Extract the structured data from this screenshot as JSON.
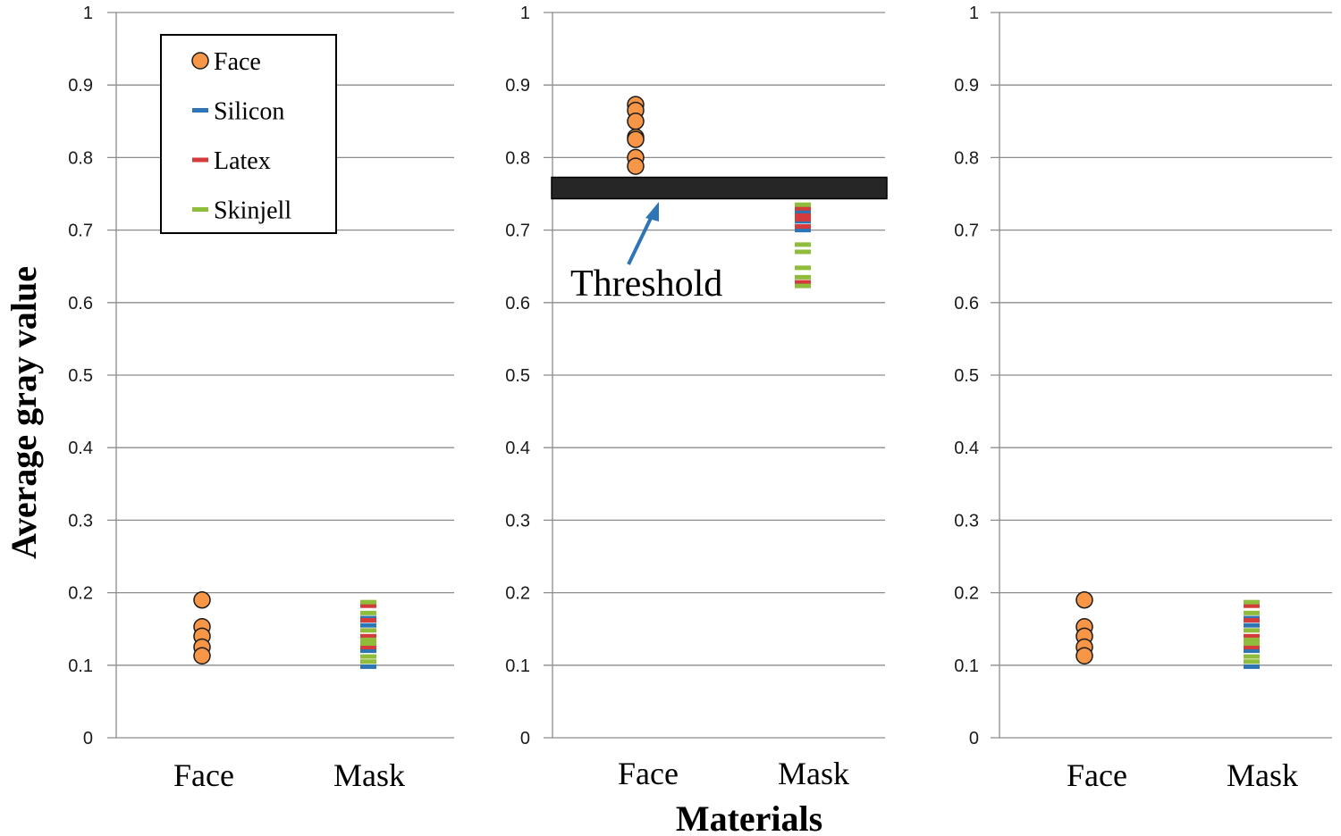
{
  "chart_data": {
    "type": "scatter",
    "ylabel": "Average gray value",
    "xlabel": "Materials",
    "ylim": [
      0,
      1
    ],
    "yticks": [
      "0",
      "0.1",
      "0.2",
      "0.3",
      "0.4",
      "0.5",
      "0.6",
      "0.7",
      "0.8",
      "0.9",
      "1"
    ],
    "categories": [
      "Face",
      "Mask"
    ],
    "grid": true,
    "legend": {
      "placement": "top-left",
      "entries": [
        {
          "name": "Face",
          "color": "#f79646",
          "marker": "circle"
        },
        {
          "name": "Silicon",
          "color": "#2e75b6",
          "marker": "dash"
        },
        {
          "name": "Latex",
          "color": "#d43b3b",
          "marker": "dash"
        },
        {
          "name": "Skinjell",
          "color": "#8fbc3a",
          "marker": "dash"
        }
      ]
    },
    "panels": [
      {
        "face": [
          0.19,
          0.153,
          0.14,
          0.125,
          0.113
        ],
        "mask": {
          "Silicon": [
            0.098,
            0.155,
            0.165,
            0.12
          ],
          "Latex": [
            0.182,
            0.162,
            0.125,
            0.14
          ],
          "Skinjell": [
            0.187,
            0.172,
            0.148,
            0.135,
            0.13,
            0.112,
            0.105
          ]
        }
      },
      {
        "threshold": {
          "value": 0.758,
          "label": "Threshold"
        },
        "face": [
          0.873,
          0.865,
          0.85,
          0.828,
          0.825,
          0.8,
          0.788
        ],
        "mask": {
          "Silicon": [
            0.712,
            0.725,
            0.7
          ],
          "Latex": [
            0.73,
            0.72,
            0.715,
            0.705,
            0.628
          ],
          "Skinjell": [
            0.735,
            0.68,
            0.67,
            0.648,
            0.635,
            0.623
          ]
        }
      },
      {
        "face": [
          0.19,
          0.153,
          0.14,
          0.125,
          0.113
        ],
        "mask": {
          "Silicon": [
            0.098,
            0.155,
            0.165,
            0.12
          ],
          "Latex": [
            0.182,
            0.162,
            0.125,
            0.14
          ],
          "Skinjell": [
            0.187,
            0.172,
            0.148,
            0.135,
            0.13,
            0.112,
            0.105
          ]
        }
      }
    ]
  }
}
